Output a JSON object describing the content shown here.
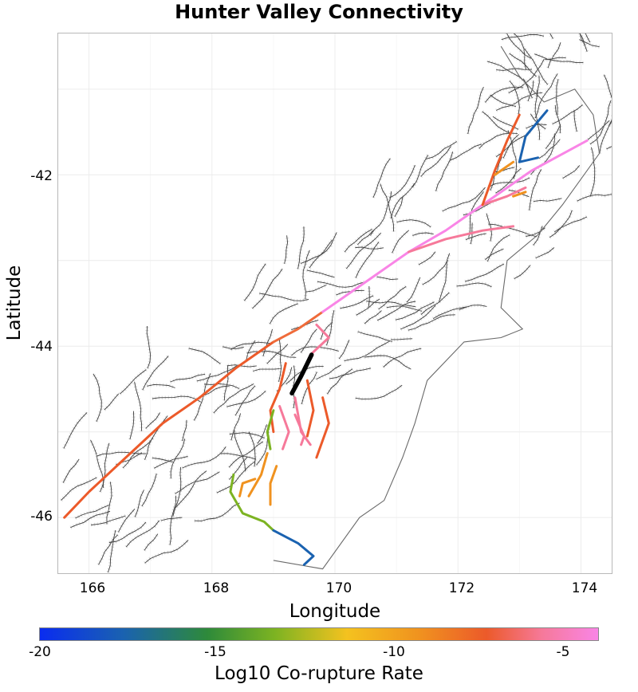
{
  "title": "Hunter Valley Connectivity",
  "axes": {
    "xlabel": "Longitude",
    "ylabel": "Latitude",
    "xticks": [
      "166",
      "168",
      "170",
      "172",
      "174"
    ],
    "yticks": [
      "-42",
      "-44",
      "-46"
    ]
  },
  "colorbar": {
    "label": "Log10 Co-rupture Rate",
    "ticks": [
      "-20",
      "-15",
      "-10",
      "-5"
    ],
    "range": [
      -20,
      -4.5
    ],
    "colors": [
      "#0a2cf0",
      "#1a62b0",
      "#2e8a3a",
      "#7cb322",
      "#f4c21f",
      "#f0921f",
      "#ec5a2a",
      "#f6799a",
      "#f985e6"
    ]
  },
  "map_data": {
    "extent": {
      "lon": [
        165.5,
        174.5
      ],
      "lat": [
        -46.65,
        -40.35
      ]
    },
    "source_fault": {
      "name": "Hunter Valley",
      "color": "#000000"
    },
    "colored_faults": [
      {
        "color": "#ec5a2a",
        "coords": [
          [
            165.6,
            -46.0
          ],
          [
            166.0,
            -45.7
          ],
          [
            166.6,
            -45.3
          ],
          [
            167.2,
            -44.9
          ],
          [
            167.8,
            -44.6
          ],
          [
            168.4,
            -44.25
          ],
          [
            169.0,
            -43.95
          ]
        ]
      },
      {
        "color": "#ef6b3a",
        "coords": [
          [
            169.0,
            -43.95
          ],
          [
            169.4,
            -43.8
          ],
          [
            169.8,
            -43.6
          ]
        ]
      },
      {
        "color": "#f985e6",
        "coords": [
          [
            169.8,
            -43.6
          ],
          [
            170.5,
            -43.25
          ],
          [
            171.2,
            -42.9
          ],
          [
            171.8,
            -42.65
          ],
          [
            172.4,
            -42.35
          ],
          [
            173.2,
            -41.95
          ],
          [
            174.1,
            -41.6
          ]
        ]
      },
      {
        "color": "#f6799a",
        "coords": [
          [
            171.2,
            -42.9
          ],
          [
            171.8,
            -42.75
          ],
          [
            172.4,
            -42.65
          ],
          [
            172.9,
            -42.6
          ]
        ]
      },
      {
        "color": "#f6799a",
        "coords": [
          [
            172.4,
            -42.35
          ],
          [
            172.8,
            -42.25
          ],
          [
            173.1,
            -42.15
          ]
        ]
      },
      {
        "color": "#f0921f",
        "coords": [
          [
            172.9,
            -42.25
          ],
          [
            173.1,
            -42.2
          ]
        ]
      },
      {
        "color": "#f6799a",
        "coords": [
          [
            169.7,
            -43.75
          ],
          [
            169.9,
            -43.9
          ],
          [
            169.6,
            -44.1
          ]
        ]
      },
      {
        "color": "#ec5a2a",
        "coords": [
          [
            169.2,
            -44.2
          ],
          [
            169.1,
            -44.5
          ],
          [
            168.95,
            -44.75
          ],
          [
            169.0,
            -45.0
          ]
        ]
      },
      {
        "color": "#f6799a",
        "coords": [
          [
            169.35,
            -44.6
          ],
          [
            169.45,
            -45.0
          ],
          [
            169.6,
            -45.15
          ]
        ]
      },
      {
        "color": "#ec5a2a",
        "coords": [
          [
            169.55,
            -44.4
          ],
          [
            169.65,
            -44.75
          ],
          [
            169.55,
            -45.05
          ]
        ]
      },
      {
        "color": "#ec5a2a",
        "coords": [
          [
            169.8,
            -44.6
          ],
          [
            169.9,
            -44.9
          ],
          [
            169.7,
            -45.3
          ]
        ]
      },
      {
        "color": "#f6799a",
        "coords": [
          [
            169.1,
            -44.7
          ],
          [
            169.25,
            -45.0
          ],
          [
            169.15,
            -45.2
          ]
        ]
      },
      {
        "color": "#f6799a",
        "coords": [
          [
            169.35,
            -44.8
          ],
          [
            169.5,
            -45.05
          ],
          [
            169.45,
            -45.15
          ]
        ]
      },
      {
        "color": "#7cb322",
        "coords": [
          [
            169.0,
            -44.75
          ],
          [
            168.9,
            -45.0
          ],
          [
            168.95,
            -45.2
          ]
        ]
      },
      {
        "color": "#f0921f",
        "coords": [
          [
            168.9,
            -45.25
          ],
          [
            168.8,
            -45.5
          ],
          [
            168.6,
            -45.75
          ]
        ]
      },
      {
        "color": "#f0921f",
        "coords": [
          [
            169.05,
            -45.4
          ],
          [
            168.95,
            -45.6
          ],
          [
            168.95,
            -45.85
          ]
        ]
      },
      {
        "color": "#f0921f",
        "coords": [
          [
            168.7,
            -45.55
          ],
          [
            168.5,
            -45.6
          ],
          [
            168.45,
            -45.75
          ]
        ]
      },
      {
        "color": "#7cb322",
        "coords": [
          [
            168.35,
            -45.5
          ],
          [
            168.3,
            -45.7
          ],
          [
            168.5,
            -45.95
          ],
          [
            168.85,
            -46.05
          ],
          [
            169.0,
            -46.15
          ]
        ]
      },
      {
        "color": "#1a62b0",
        "coords": [
          [
            169.0,
            -46.15
          ],
          [
            169.4,
            -46.3
          ],
          [
            169.65,
            -46.45
          ],
          [
            169.5,
            -46.55
          ]
        ]
      },
      {
        "color": "#ec5a2a",
        "coords": [
          [
            173.0,
            -41.3
          ],
          [
            172.8,
            -41.6
          ],
          [
            172.6,
            -41.95
          ],
          [
            172.4,
            -42.35
          ]
        ]
      },
      {
        "color": "#1a62b0",
        "coords": [
          [
            173.45,
            -41.25
          ],
          [
            173.1,
            -41.55
          ],
          [
            173.0,
            -41.85
          ],
          [
            173.3,
            -41.8
          ]
        ]
      },
      {
        "color": "#f0921f",
        "coords": [
          [
            172.9,
            -41.85
          ],
          [
            172.6,
            -42.0
          ]
        ]
      }
    ],
    "coastline": [
      [
        169.0,
        -46.5
      ],
      [
        169.8,
        -46.6
      ],
      [
        170.4,
        -46.0
      ],
      [
        170.8,
        -45.8
      ],
      [
        171.1,
        -45.3
      ],
      [
        171.3,
        -44.9
      ],
      [
        171.5,
        -44.4
      ],
      [
        172.1,
        -43.95
      ],
      [
        172.7,
        -43.9
      ],
      [
        173.05,
        -43.8
      ],
      [
        172.7,
        -43.55
      ],
      [
        172.8,
        -43.0
      ],
      [
        173.3,
        -42.7
      ],
      [
        173.7,
        -42.35
      ],
      [
        174.3,
        -41.75
      ],
      [
        174.2,
        -41.3
      ],
      [
        173.9,
        -41.0
      ],
      [
        173.4,
        -41.15
      ],
      [
        173.0,
        -40.85
      ],
      [
        172.7,
        -40.5
      ]
    ]
  }
}
